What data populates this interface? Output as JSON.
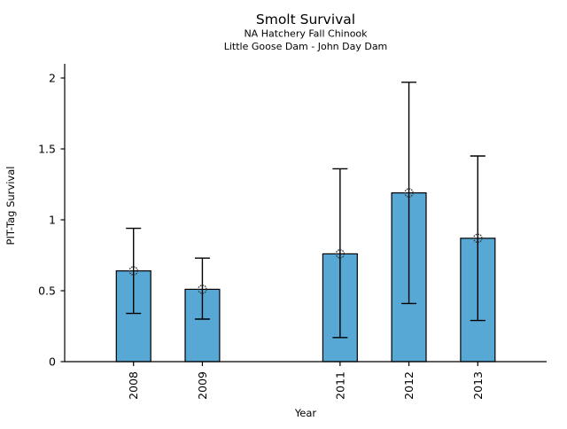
{
  "chart_data": {
    "type": "bar",
    "title": "Smolt Survival",
    "subtitle1": "NA Hatchery Fall Chinook",
    "subtitle2": "Little Goose Dam - John Day Dam",
    "xlabel": "Year",
    "ylabel": "PIT-Tag Survival",
    "categories": [
      "2008",
      "2009",
      "2011",
      "2012",
      "2013"
    ],
    "x_positions": [
      2008,
      2009,
      2011,
      2012,
      2013
    ],
    "values": [
      0.64,
      0.51,
      0.76,
      1.19,
      0.87
    ],
    "error_low": [
      0.34,
      0.3,
      0.17,
      0.41,
      0.29
    ],
    "error_high": [
      0.94,
      0.73,
      1.36,
      1.97,
      1.45
    ],
    "yticks": [
      0,
      0.5,
      1,
      1.5,
      2
    ],
    "ytick_labels": [
      "0",
      "0.5",
      "1",
      "1.5",
      "2"
    ],
    "ylim": [
      0,
      2.1
    ],
    "xlim": [
      2007,
      2014
    ],
    "bar_width_years": 0.5,
    "bar_color": "#58A8D5",
    "bar_edge_color": "#000000",
    "errorbar_color": "#000000",
    "marker": "open-circle",
    "marker_color": "#3a3a3a",
    "axis_color": "#000000",
    "grid": false,
    "legend": null
  }
}
